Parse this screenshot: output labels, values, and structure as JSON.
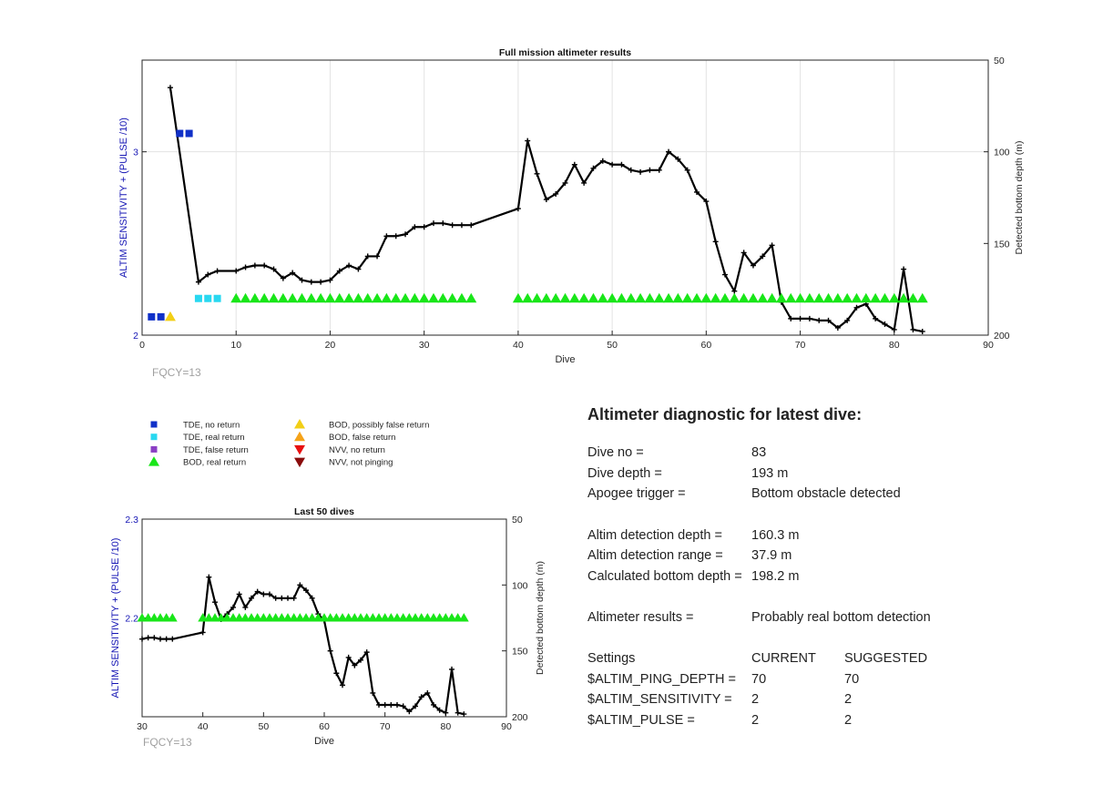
{
  "colors": {
    "tde_no_return": "#1030c8",
    "tde_real_return": "#28d8f0",
    "tde_false_return": "#8a3fc4",
    "bod_real_return": "#19e619",
    "bod_possibly_false": "#f2cf16",
    "bod_false_return": "#f5a31a",
    "nvv_no_return": "#e81010",
    "nvv_not_pinging": "#8a0c0c",
    "depth_line": "#000000",
    "left_axis": "#1414b4",
    "fqcy_text": "#a0a0a0"
  },
  "legend": {
    "items": [
      {
        "label": "TDE, no return",
        "marker": "square",
        "color": "#1030c8"
      },
      {
        "label": "TDE, real return",
        "marker": "square",
        "color": "#28d8f0"
      },
      {
        "label": "TDE, false return",
        "marker": "square",
        "color": "#8a3fc4"
      },
      {
        "label": "BOD, real return",
        "marker": "triangle-up",
        "color": "#19e619"
      },
      {
        "label": "BOD, possibly false return",
        "marker": "triangle-up",
        "color": "#f2cf16"
      },
      {
        "label": "BOD, false return",
        "marker": "triangle-up",
        "color": "#f5a31a"
      },
      {
        "label": "NVV, no return",
        "marker": "triangle-down",
        "color": "#e81010"
      },
      {
        "label": "NVV, not pinging",
        "marker": "triangle-down",
        "color": "#8a0c0c"
      }
    ]
  },
  "chart_data": [
    {
      "type": "line",
      "title": "Full mission altimeter results",
      "xlabel": "Dive",
      "ylabel_left": "ALTIM SENSITIVITY + (PULSE /10)",
      "ylabel_right": "Detected bottom depth (m)",
      "xlim": [
        0,
        90
      ],
      "xticks": [
        0,
        10,
        20,
        30,
        40,
        50,
        60,
        70,
        80,
        90
      ],
      "ylim_left": [
        2,
        3.5
      ],
      "yticks_left": [
        2,
        3
      ],
      "ylim_right": [
        200,
        50
      ],
      "yticks_right": [
        50,
        100,
        150,
        200
      ],
      "grid": true,
      "footnote": "FQCY=13",
      "depth_series": {
        "x": [
          3,
          6,
          7,
          8,
          10,
          11,
          12,
          13,
          14,
          15,
          16,
          17,
          18,
          19,
          20,
          21,
          22,
          23,
          24,
          25,
          26,
          27,
          28,
          29,
          30,
          31,
          32,
          33,
          34,
          35,
          40,
          41,
          42,
          43,
          44,
          45,
          46,
          47,
          48,
          49,
          50,
          51,
          52,
          53,
          54,
          55,
          56,
          57,
          58,
          59,
          60,
          61,
          62,
          63,
          64,
          65,
          66,
          67,
          68,
          69,
          70,
          71,
          72,
          73,
          74,
          75,
          76,
          77,
          78,
          79,
          80,
          81,
          82,
          83
        ],
        "y": [
          65,
          171,
          167,
          165,
          165,
          163,
          162,
          162,
          164,
          169,
          166,
          170,
          171,
          171,
          170,
          165,
          162,
          164,
          157,
          157,
          146,
          146,
          145,
          141,
          141,
          139,
          139,
          140,
          140,
          140,
          131,
          94,
          112,
          126,
          123,
          117,
          107,
          117,
          109,
          105,
          107,
          107,
          110,
          111,
          110,
          110,
          100,
          104,
          110,
          122,
          127,
          149,
          167,
          176,
          155,
          162,
          157,
          151,
          182,
          191,
          191,
          191,
          192,
          192,
          196,
          192,
          185,
          183,
          191,
          194,
          197,
          164,
          197,
          198
        ]
      },
      "tde_no_return": {
        "x": [
          1,
          2,
          4,
          5
        ],
        "y": [
          2.1,
          2.1,
          3.1,
          3.1
        ]
      },
      "tde_real_return": {
        "x": [
          6,
          7,
          8
        ],
        "y": [
          2.2,
          2.2,
          2.2
        ]
      },
      "bod_possibly_false": {
        "x": [
          3
        ],
        "y": [
          2.1
        ]
      },
      "bod_real_return": {
        "x": [
          10,
          11,
          12,
          13,
          14,
          15,
          16,
          17,
          18,
          19,
          20,
          21,
          22,
          23,
          24,
          25,
          26,
          27,
          28,
          29,
          30,
          31,
          32,
          33,
          34,
          35,
          40,
          41,
          42,
          43,
          44,
          45,
          46,
          47,
          48,
          49,
          50,
          51,
          52,
          53,
          54,
          55,
          56,
          57,
          58,
          59,
          60,
          61,
          62,
          63,
          64,
          65,
          66,
          67,
          68,
          69,
          70,
          71,
          72,
          73,
          74,
          75,
          76,
          77,
          78,
          79,
          80,
          81,
          82,
          83
        ],
        "y_value": 2.2
      }
    },
    {
      "type": "line",
      "title": "Last 50 dives",
      "xlabel": "Dive",
      "ylabel_left": "ALTIM SENSITIVITY + (PULSE /10)",
      "ylabel_right": "Detected bottom depth (m)",
      "xlim": [
        30,
        90
      ],
      "xticks": [
        30,
        40,
        50,
        60,
        70,
        80,
        90
      ],
      "ylim_left": [
        2.1,
        2.3
      ],
      "yticks_left": [
        2.2,
        2.3
      ],
      "ylim_right": [
        200,
        50
      ],
      "yticks_right": [
        50,
        100,
        150,
        200
      ],
      "grid": false,
      "footnote": "FQCY=13",
      "depth_series": {
        "x": [
          30,
          31,
          32,
          33,
          34,
          35,
          40,
          41,
          42,
          43,
          44,
          45,
          46,
          47,
          48,
          49,
          50,
          51,
          52,
          53,
          54,
          55,
          56,
          57,
          58,
          59,
          60,
          61,
          62,
          63,
          64,
          65,
          66,
          67,
          68,
          69,
          70,
          71,
          72,
          73,
          74,
          75,
          76,
          77,
          78,
          79,
          80,
          81,
          82,
          83
        ],
        "y": [
          141,
          140,
          140,
          141,
          141,
          141,
          136,
          94,
          113,
          126,
          122,
          117,
          107,
          117,
          110,
          105,
          107,
          107,
          110,
          110,
          110,
          110,
          100,
          104,
          110,
          122,
          127,
          150,
          167,
          176,
          155,
          161,
          157,
          151,
          182,
          191,
          191,
          191,
          191,
          192,
          196,
          192,
          185,
          182,
          191,
          195,
          197,
          164,
          197,
          198
        ]
      },
      "bod_real_return": {
        "x": [
          30,
          31,
          32,
          33,
          34,
          35,
          40,
          41,
          42,
          43,
          44,
          45,
          46,
          47,
          48,
          49,
          50,
          51,
          52,
          53,
          54,
          55,
          56,
          57,
          58,
          59,
          60,
          61,
          62,
          63,
          64,
          65,
          66,
          67,
          68,
          69,
          70,
          71,
          72,
          73,
          74,
          75,
          76,
          77,
          78,
          79,
          80,
          81,
          82,
          83
        ],
        "y_value": 2.2
      }
    }
  ],
  "diagnostic": {
    "title": "Altimeter diagnostic for latest dive:",
    "dive_no_label": "Dive no =",
    "dive_no_value": "83",
    "dive_depth_label": "Dive depth =",
    "dive_depth_value": "193 m",
    "apogee_label": "Apogee trigger =",
    "apogee_value": "Bottom obstacle detected",
    "det_depth_label": "Altim detection depth =",
    "det_depth_value": "160.3 m",
    "det_range_label": "Altim detection range =",
    "det_range_value": "37.9 m",
    "calc_depth_label": "Calculated bottom depth =",
    "calc_depth_value": "198.2 m",
    "results_label": "Altimeter results =",
    "results_value": "Probably real bottom detection",
    "settings_label": "Settings",
    "current_label": "CURRENT",
    "suggested_label": "SUGGESTED",
    "ping_label": "$ALTIM_PING_DEPTH =",
    "ping_current": "70",
    "ping_suggested": "70",
    "sens_label": "$ALTIM_SENSITIVITY =",
    "sens_current": "2",
    "sens_suggested": "2",
    "pulse_label": "$ALTIM_PULSE =",
    "pulse_current": "2",
    "pulse_suggested": "2"
  }
}
